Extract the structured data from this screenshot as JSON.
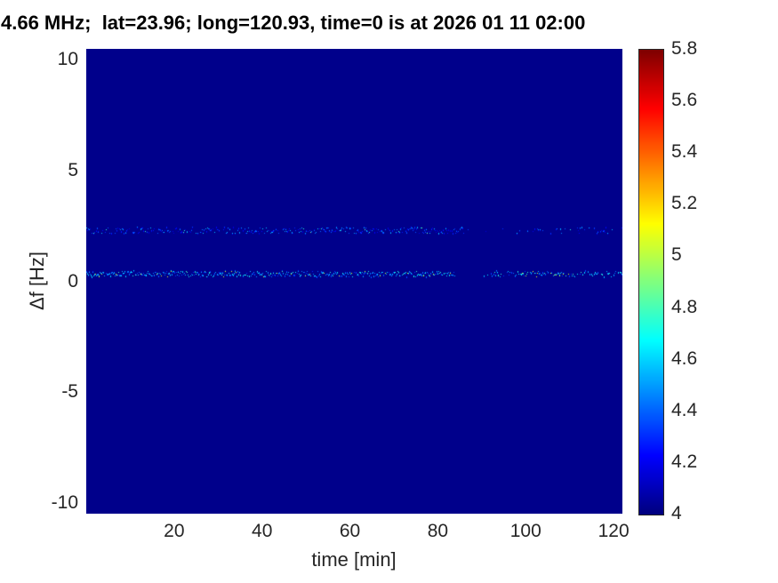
{
  "chart_data": {
    "type": "heatmap",
    "title": "4.66 MHz;  lat=23.96; long=120.93, time=0 is at 2026 01 11 02:00",
    "xlabel": "time [min]",
    "ylabel": "Δf [Hz]",
    "xlim": [
      0,
      122
    ],
    "ylim": [
      -10.5,
      10.5
    ],
    "grid": false,
    "x_ticks": [
      {
        "v": 20,
        "label": "20"
      },
      {
        "v": 40,
        "label": "40"
      },
      {
        "v": 60,
        "label": "60"
      },
      {
        "v": 80,
        "label": "80"
      },
      {
        "v": 100,
        "label": "100"
      },
      {
        "v": 120,
        "label": "120"
      }
    ],
    "y_ticks": [
      {
        "v": 10,
        "label": "10"
      },
      {
        "v": 5,
        "label": "5"
      },
      {
        "v": 0,
        "label": "0"
      },
      {
        "v": -5,
        "label": "-5"
      },
      {
        "v": -10,
        "label": "-10"
      }
    ],
    "colorbar": {
      "min": 4,
      "max": 5.8,
      "colormap": "jet",
      "position": "right",
      "ticks": [
        {
          "v": 5.8,
          "label": "5.8"
        },
        {
          "v": 5.6,
          "label": "5.6"
        },
        {
          "v": 5.4,
          "label": "5.4"
        },
        {
          "v": 5.2,
          "label": "5.2"
        },
        {
          "v": 5.0,
          "label": "5"
        },
        {
          "v": 4.8,
          "label": "4.8"
        },
        {
          "v": 4.6,
          "label": "4.6"
        },
        {
          "v": 4.4,
          "label": "4.4"
        },
        {
          "v": 4.2,
          "label": "4.2"
        },
        {
          "v": 4.0,
          "label": "4"
        }
      ]
    },
    "background_value": 4.02,
    "traces": [
      {
        "name": "upper-doppler-trace",
        "delta_f_hz": 2.3,
        "value_range": [
          4.15,
          4.6
        ],
        "hot_value": 4.75,
        "hot_probability": 0.04,
        "jitter_hz": 0.07,
        "segments": [
          {
            "from": 0,
            "to": 86,
            "density": 0.72
          },
          {
            "from": 86,
            "to": 98,
            "density": 0.08
          },
          {
            "from": 98,
            "to": 122,
            "density": 0.3
          }
        ]
      },
      {
        "name": "main-doppler-trace",
        "delta_f_hz": 0.35,
        "value_range": [
          4.3,
          4.8
        ],
        "hot_value": 5.0,
        "hot_probability": 0.07,
        "jitter_hz": 0.06,
        "segments": [
          {
            "from": 0,
            "to": 84,
            "density": 0.93,
            "hot_probability": 0.07
          },
          {
            "from": 84,
            "to": 92,
            "density": 0.08,
            "hot_probability": 0
          },
          {
            "from": 92,
            "to": 99,
            "density": 0.5,
            "hot_probability": 0.05
          },
          {
            "from": 99,
            "to": 111,
            "density": 0.85,
            "hot_probability": 0.18
          },
          {
            "from": 111,
            "to": 122,
            "density": 0.55,
            "hot_probability": 0.05
          }
        ]
      }
    ]
  }
}
